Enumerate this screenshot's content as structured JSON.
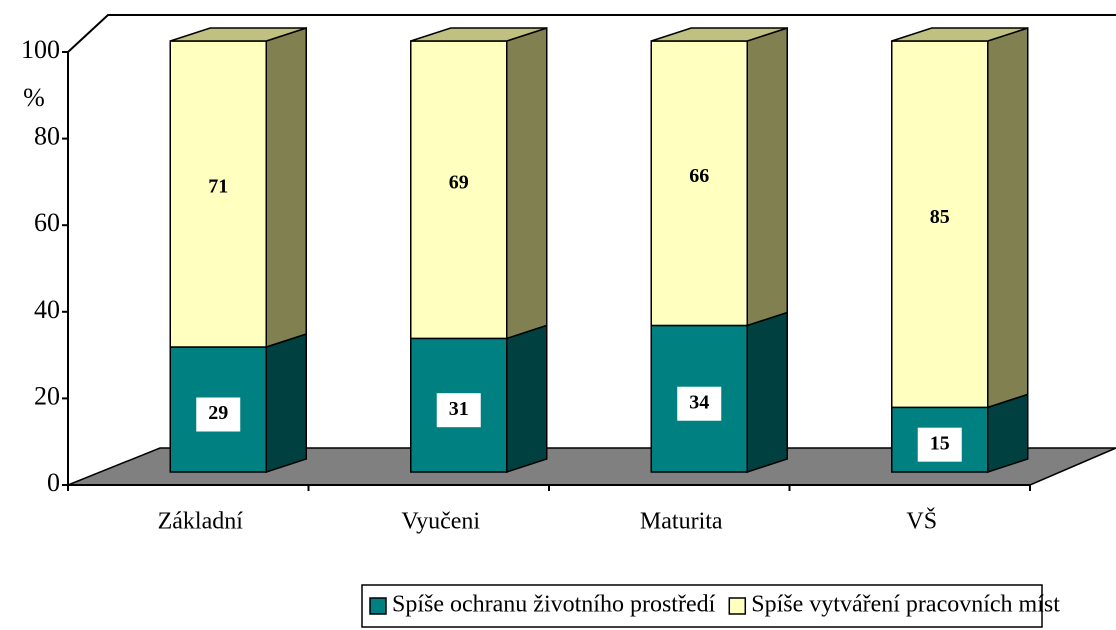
{
  "chart_data": {
    "type": "bar3d_stacked",
    "y_label": "%",
    "categories": [
      "Základní",
      "Vyučeni",
      "Maturita",
      "VŠ"
    ],
    "series": [
      {
        "name": "Spíše ochranu životního prostředí",
        "color": "#008080",
        "side": "#004040",
        "values": [
          29,
          31,
          34,
          15
        ]
      },
      {
        "name": "Spíše vytváření pracovních míst",
        "color": "#ffffc0",
        "side": "#808050",
        "values": [
          71,
          69,
          66,
          85
        ]
      }
    ],
    "ylim": [
      0,
      100
    ],
    "yticks": [
      0,
      20,
      40,
      60,
      80,
      100
    ]
  }
}
